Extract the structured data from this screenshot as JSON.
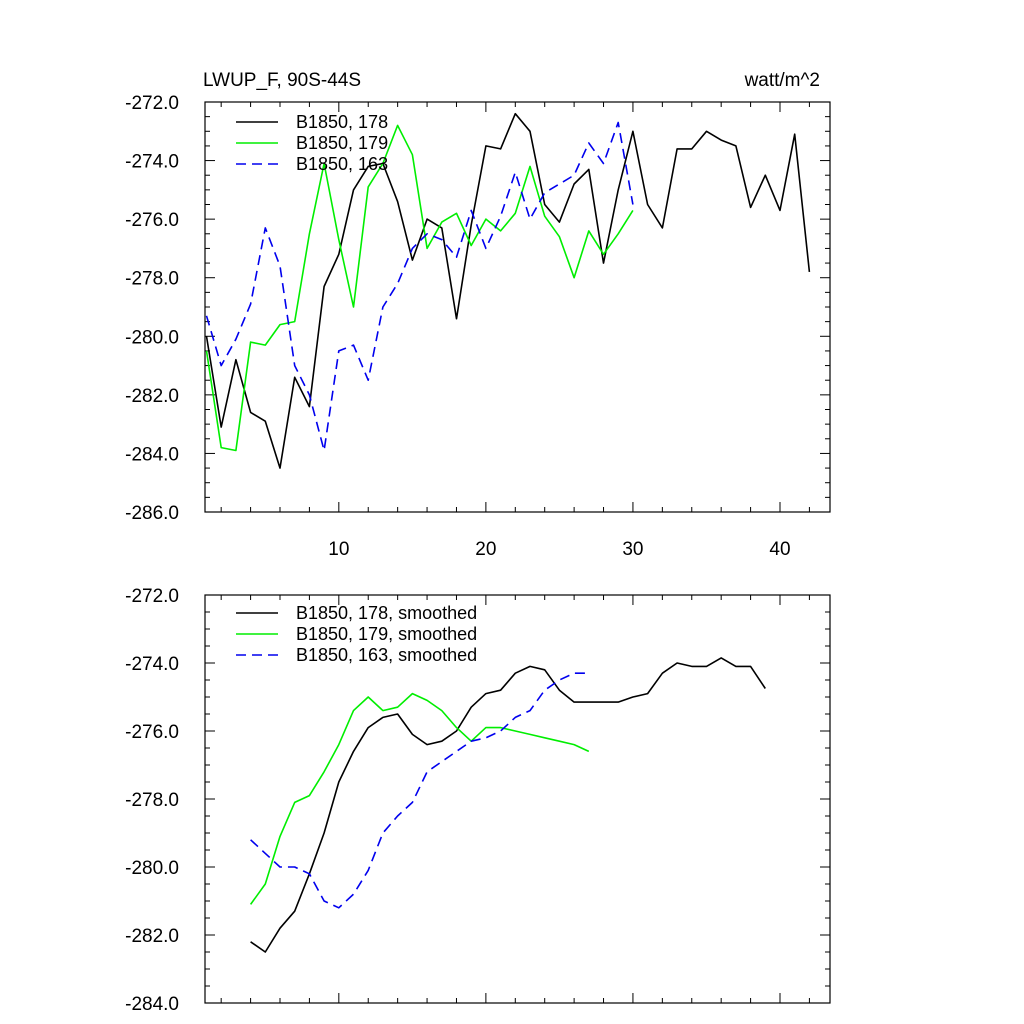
{
  "chart_data": [
    {
      "type": "line",
      "title": "LWUP_F, 90S-44S",
      "units": "watt/m^2",
      "xlim": [
        0.9,
        43.4
      ],
      "ylim": [
        -286.0,
        -272.0
      ],
      "xticks": [
        10,
        20,
        30,
        40
      ],
      "xtick_labels": [
        "10",
        "20",
        "30",
        "40"
      ],
      "yticks": [
        -286,
        -284,
        -282,
        -280,
        -278,
        -276,
        -274,
        -272
      ],
      "ytick_labels": [
        "-286.0",
        "-284.0",
        "-282.0",
        "-280.0",
        "-278.0",
        "-276.0",
        "-274.0",
        "-272.0"
      ],
      "legend_position": "top-left",
      "series": [
        {
          "name": "B1850, 178",
          "color": "#000000",
          "dash": "solid",
          "x": [
            1,
            2,
            3,
            4,
            5,
            6,
            7,
            8,
            9,
            10,
            11,
            12,
            13,
            14,
            15,
            16,
            17,
            18,
            19,
            20,
            21,
            22,
            23,
            24,
            25,
            26,
            27,
            28,
            29,
            30,
            31,
            32,
            33,
            34,
            35,
            36,
            37,
            38,
            39,
            40,
            41,
            42
          ],
          "values": [
            -280.0,
            -283.1,
            -280.8,
            -282.6,
            -282.9,
            -284.5,
            -281.4,
            -282.4,
            -278.3,
            -277.2,
            -275.0,
            -274.2,
            -274.1,
            -275.4,
            -277.4,
            -276.0,
            -276.3,
            -279.4,
            -276.2,
            -273.5,
            -273.6,
            -272.4,
            -273.0,
            -275.5,
            -276.1,
            -274.8,
            -274.3,
            -277.5,
            -275.0,
            -273.0,
            -275.5,
            -276.3,
            -273.6,
            -273.6,
            -273.0,
            -273.3,
            -273.5,
            -275.6,
            -274.5,
            -275.7,
            -273.1,
            -277.8
          ]
        },
        {
          "name": "B1850, 179",
          "color": "#00ee00",
          "dash": "solid",
          "x": [
            1,
            2,
            3,
            4,
            5,
            6,
            7,
            8,
            9,
            10,
            11,
            12,
            13,
            14,
            15,
            16,
            17,
            18,
            19,
            20,
            21,
            22,
            23,
            24,
            25,
            26,
            27,
            28,
            29,
            30
          ],
          "values": [
            -280.5,
            -283.8,
            -283.9,
            -280.2,
            -280.3,
            -279.6,
            -279.5,
            -276.5,
            -274.1,
            -276.7,
            -279.0,
            -274.9,
            -274.1,
            -272.8,
            -273.8,
            -277.0,
            -276.1,
            -275.8,
            -276.9,
            -276.0,
            -276.4,
            -275.8,
            -274.2,
            -275.9,
            -276.6,
            -278.0,
            -276.4,
            -277.2,
            -276.5,
            -275.7
          ]
        },
        {
          "name": "B1850, 163",
          "color": "#0000ee",
          "dash": "dashed",
          "x": [
            1,
            2,
            3,
            4,
            5,
            6,
            7,
            8,
            9,
            10,
            11,
            12,
            13,
            14,
            15,
            16,
            17,
            18,
            19,
            20,
            21,
            22,
            23,
            24,
            25,
            26,
            27,
            28,
            29,
            30
          ],
          "values": [
            -279.3,
            -281.0,
            -280.1,
            -278.9,
            -276.3,
            -277.6,
            -281.0,
            -282.0,
            -283.9,
            -280.5,
            -280.3,
            -281.5,
            -279.0,
            -278.2,
            -277.0,
            -276.5,
            -276.7,
            -277.3,
            -275.7,
            -277.0,
            -275.9,
            -274.4,
            -276.0,
            -275.1,
            -274.8,
            -274.5,
            -273.4,
            -274.1,
            -272.7,
            -275.5
          ]
        }
      ]
    },
    {
      "type": "line",
      "xlim": [
        0.9,
        43.4
      ],
      "ylim": [
        -284.0,
        -272.0
      ],
      "xticks": [
        10,
        20,
        30,
        40
      ],
      "yticks": [
        -284,
        -282,
        -280,
        -278,
        -276,
        -274,
        -272
      ],
      "ytick_labels": [
        "-284.0",
        "-282.0",
        "-280.0",
        "-278.0",
        "-276.0",
        "-274.0",
        "-272.0"
      ],
      "legend_position": "top-left",
      "series": [
        {
          "name": "B1850, 178, smoothed",
          "color": "#000000",
          "dash": "solid",
          "x": [
            4,
            5,
            6,
            7,
            8,
            9,
            10,
            11,
            12,
            13,
            14,
            15,
            16,
            17,
            18,
            19,
            20,
            21,
            22,
            23,
            24,
            25,
            26,
            27,
            28,
            29,
            30,
            31,
            32,
            33,
            34,
            35,
            36,
            37,
            38,
            39
          ],
          "values": [
            -282.2,
            -282.5,
            -281.8,
            -281.3,
            -280.2,
            -279.0,
            -277.5,
            -276.6,
            -275.9,
            -275.6,
            -275.5,
            -276.1,
            -276.4,
            -276.3,
            -276.0,
            -275.3,
            -274.9,
            -274.8,
            -274.3,
            -274.1,
            -274.2,
            -274.8,
            -275.15,
            -275.15,
            -275.15,
            -275.15,
            -275.0,
            -274.9,
            -274.3,
            -274.0,
            -274.1,
            -274.1,
            -273.85,
            -274.1,
            -274.1,
            -274.75
          ]
        },
        {
          "name": "B1850, 179, smoothed",
          "color": "#00ee00",
          "dash": "solid",
          "x": [
            4,
            5,
            6,
            7,
            8,
            9,
            10,
            11,
            12,
            13,
            14,
            15,
            16,
            17,
            18,
            19,
            20,
            21,
            22,
            23,
            24,
            25,
            26,
            27
          ],
          "values": [
            -281.1,
            -280.5,
            -279.1,
            -278.1,
            -277.9,
            -277.2,
            -276.4,
            -275.4,
            -275.0,
            -275.4,
            -275.3,
            -274.9,
            -275.1,
            -275.4,
            -275.9,
            -276.3,
            -275.9,
            -275.9,
            -276.0,
            -276.1,
            -276.2,
            -276.3,
            -276.4,
            -276.6
          ]
        },
        {
          "name": "B1850, 163, smoothed",
          "color": "#0000ee",
          "dash": "dashed",
          "x": [
            4,
            5,
            6,
            7,
            8,
            9,
            10,
            11,
            12,
            13,
            14,
            15,
            16,
            17,
            18,
            19,
            20,
            21,
            22,
            23,
            24,
            25,
            26,
            27
          ],
          "values": [
            -279.2,
            -279.6,
            -280.0,
            -280.0,
            -280.2,
            -281.0,
            -281.2,
            -280.8,
            -280.1,
            -279.0,
            -278.5,
            -278.1,
            -277.2,
            -276.9,
            -276.6,
            -276.3,
            -276.2,
            -276.0,
            -275.6,
            -275.4,
            -274.8,
            -274.5,
            -274.3,
            -274.3
          ]
        }
      ]
    }
  ]
}
